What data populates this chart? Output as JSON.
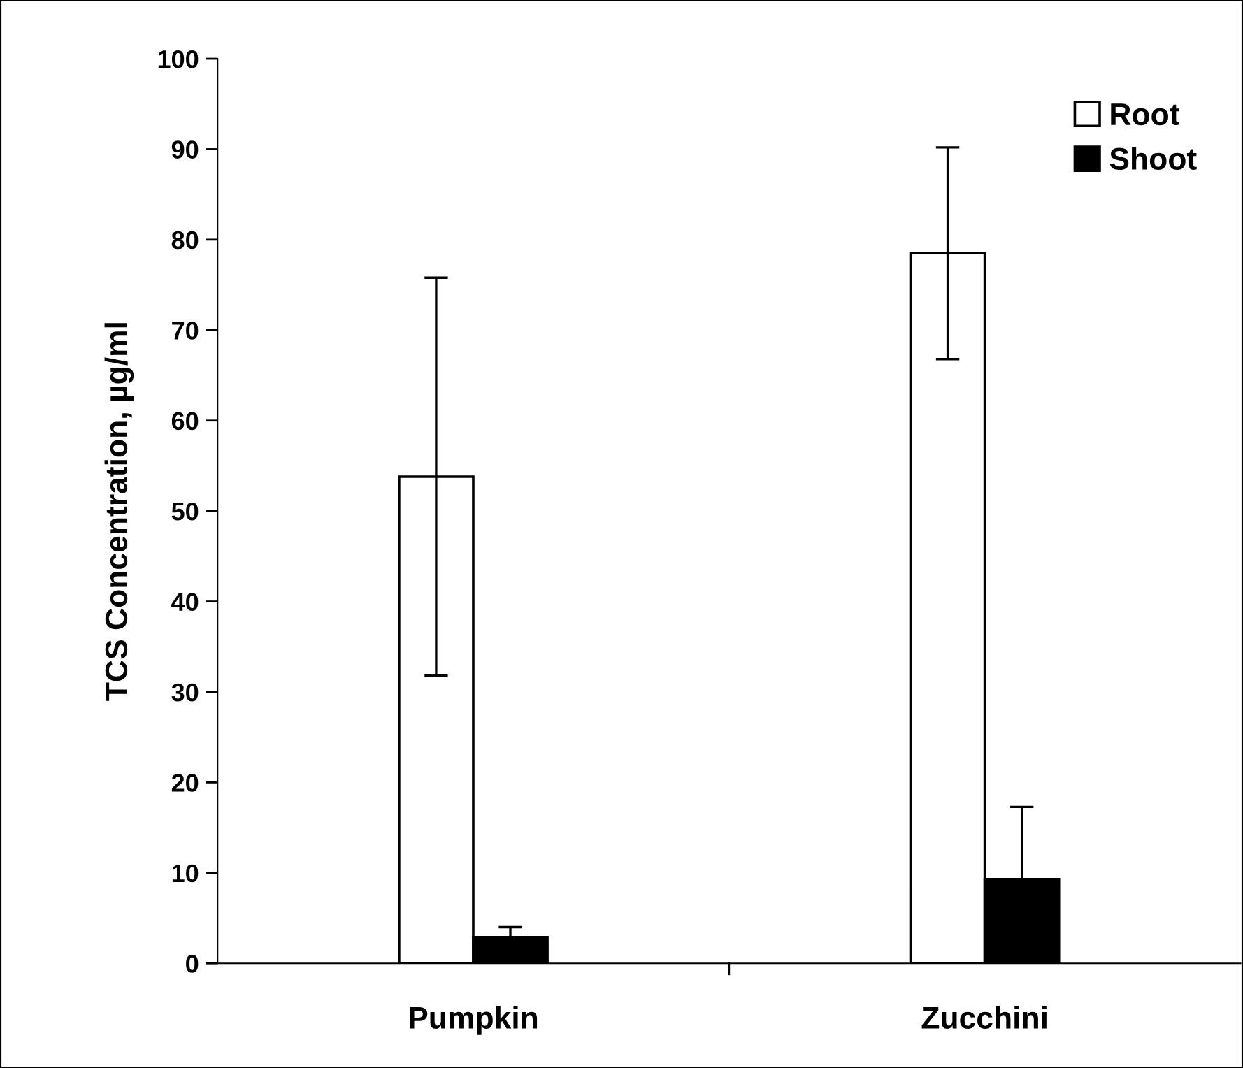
{
  "chart_data": {
    "type": "bar",
    "ylabel": "TCS Concentration, µg/ml",
    "categories": [
      "Pumpkin",
      "Zucchini"
    ],
    "series": [
      {
        "name": "Root",
        "color": "#ffffff",
        "values": [
          53.8,
          78.5
        ],
        "errors": [
          22,
          11.7
        ]
      },
      {
        "name": "Shoot",
        "color": "#000000",
        "values": [
          2.9,
          9.3
        ],
        "errors": [
          1.1,
          8
        ]
      }
    ],
    "ylim": [
      0,
      100
    ],
    "yticks": [
      0,
      10,
      20,
      30,
      40,
      50,
      60,
      70,
      80,
      90,
      100
    ],
    "grid": false,
    "legend": "top right"
  }
}
